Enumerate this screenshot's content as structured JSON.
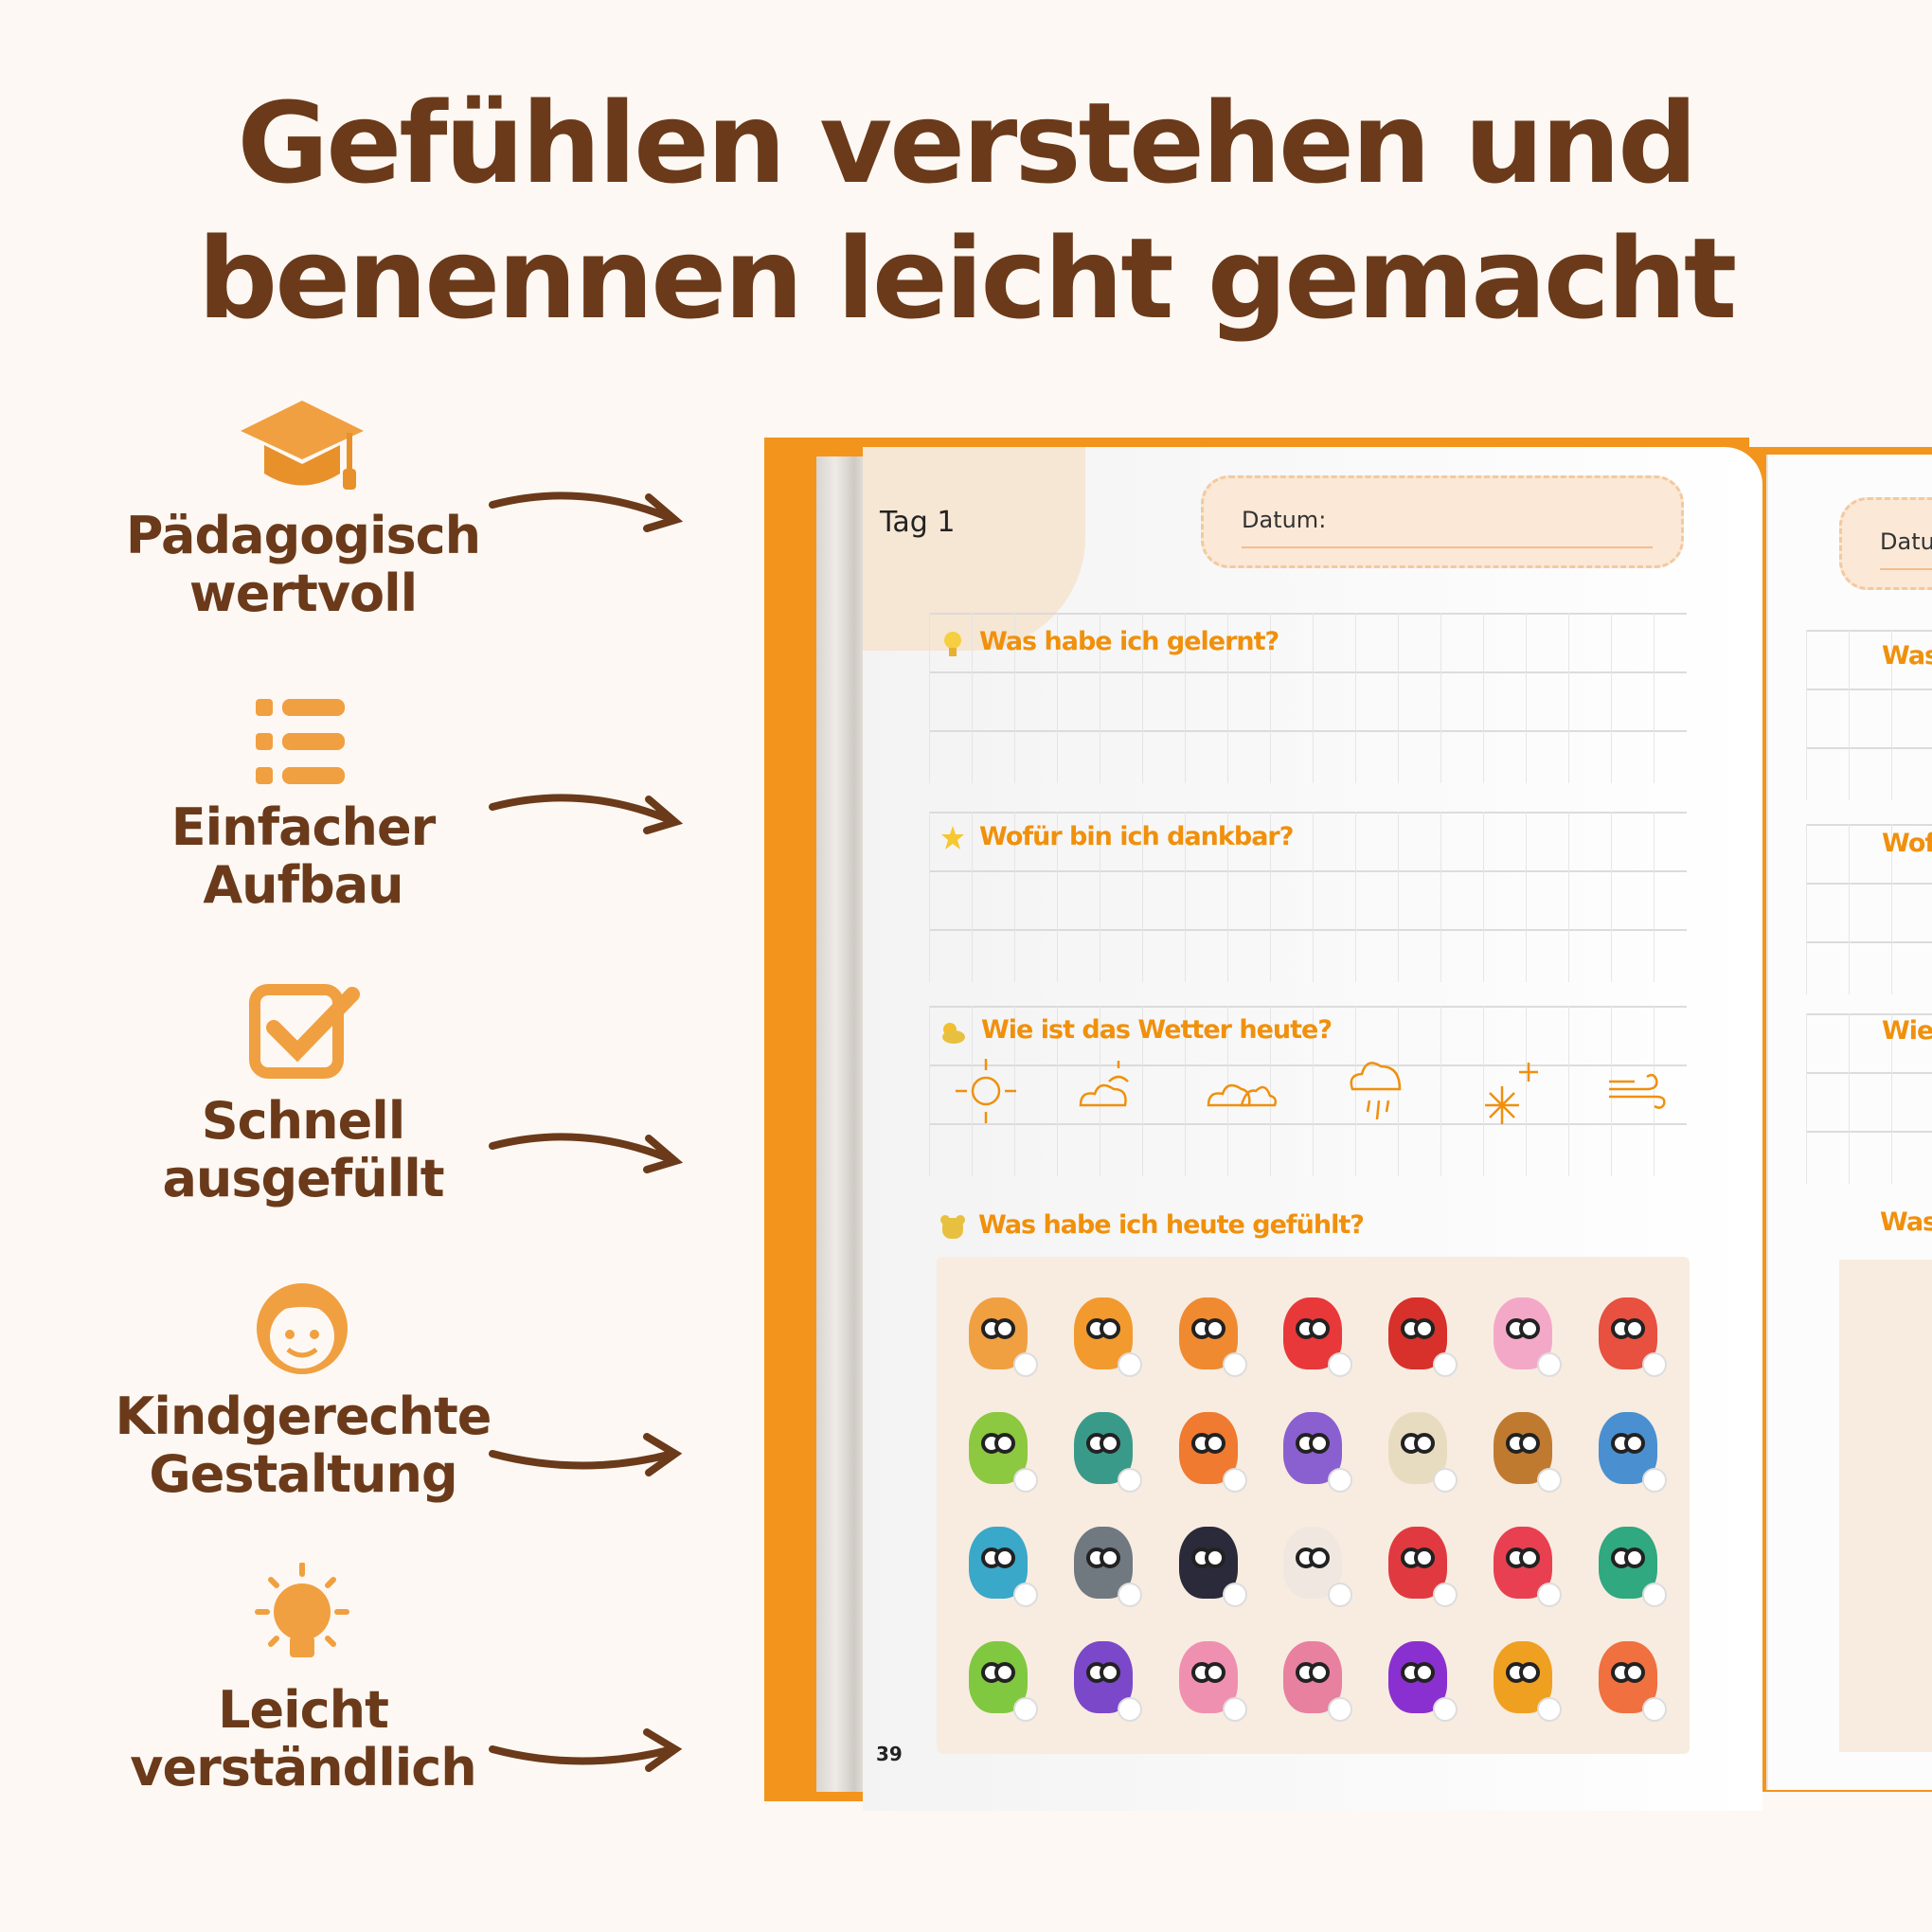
{
  "headline": {
    "line1": "Gefühlen verstehen und",
    "line2": "benennen leicht gemacht"
  },
  "features": [
    {
      "icon": "graduation-cap-icon",
      "line1": "Pädagogisch",
      "line2": "wertvoll"
    },
    {
      "icon": "list-icon",
      "line1": "Einfacher",
      "line2": "Aufbau"
    },
    {
      "icon": "checkbox-icon",
      "line1": "Schnell",
      "line2": "ausgefüllt"
    },
    {
      "icon": "child-face-icon",
      "line1": "Kindgerechte",
      "line2": "Gestaltung"
    },
    {
      "icon": "lightbulb-icon",
      "line1": "Leicht",
      "line2": "verständlich"
    }
  ],
  "colors": {
    "headline": "#6b3a1a",
    "accent": "#f0900c",
    "cover": "#f3941c",
    "background": "#fdf8f3"
  },
  "book": {
    "left_page": {
      "day": "Tag 1",
      "date_label": "Datum:",
      "questions": [
        "Was habe ich gelernt?",
        "Wofür bin ich dankbar?",
        "Wie ist das Wetter heute?",
        "Was habe ich heute gefühlt?"
      ],
      "weather_icons": [
        "sun-icon",
        "sun-cloud-icon",
        "clouds-icon",
        "rain-icon",
        "snow-icon",
        "wind-icon"
      ],
      "monster_colors": [
        "#f0a040",
        "#f29a2e",
        "#f08a30",
        "#e8383a",
        "#d8302a",
        "#f4a8c8",
        "#e85040",
        "#8cc840",
        "#3a9a8a",
        "#f07a30",
        "#8a60d0",
        "#e8dcc0",
        "#c07a30",
        "#4a90d0",
        "#3aa8c8",
        "#707880",
        "#2a2a3a",
        "#f0e8e0",
        "#e03a40",
        "#e84050",
        "#30a880",
        "#80c840",
        "#7a48c8",
        "#f090b0",
        "#e880a0",
        "#8a30d0",
        "#f0a020",
        "#f07040",
        "#f08040"
      ],
      "page_number": "39"
    },
    "right_page": {
      "date_label": "Datu",
      "questions": [
        "Was",
        "Wofü",
        "Wie",
        "Was"
      ]
    }
  }
}
